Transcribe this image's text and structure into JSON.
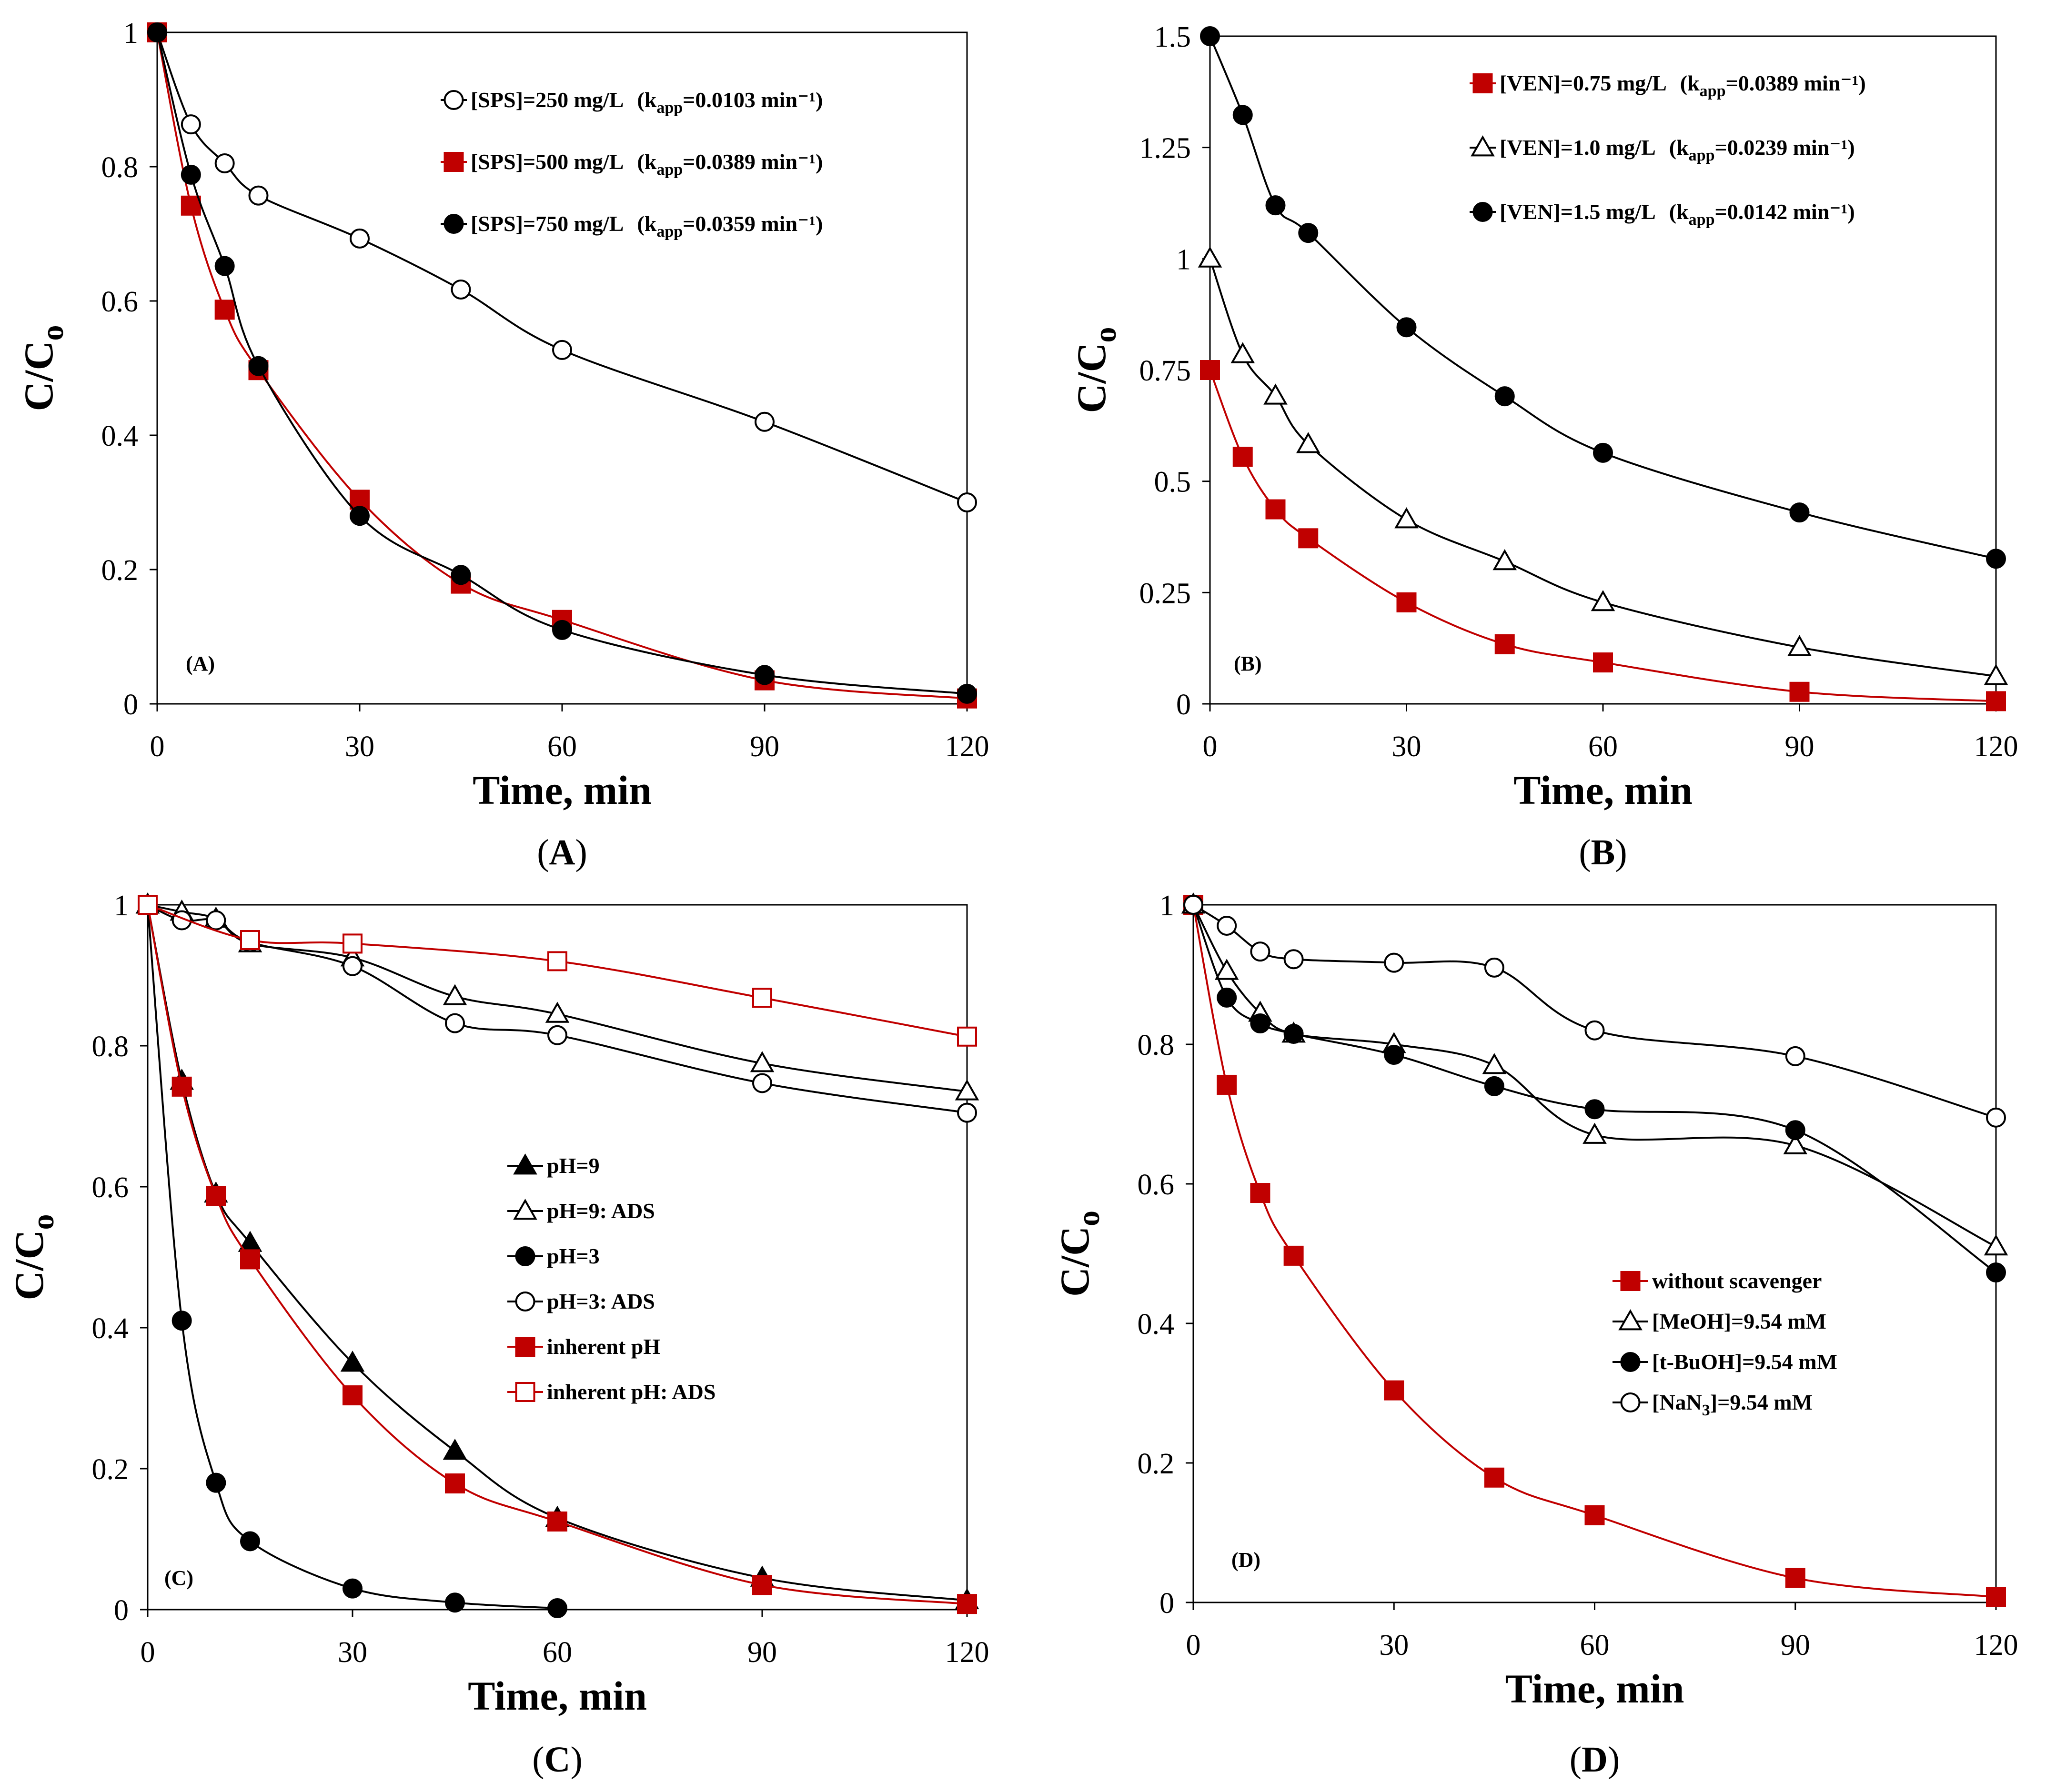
{
  "colors": {
    "red": "#c00000",
    "black": "#000000",
    "white": "#ffffff"
  },
  "chart_data": [
    {
      "id": "A",
      "type": "line",
      "caption_prefix": "(",
      "caption": "A",
      "caption_suffix": ")",
      "panel_label": "(A)",
      "xlabel": "Time, min",
      "ylabel_main": "C/C",
      "ylabel_sub": "o",
      "xlim": [
        0,
        120
      ],
      "ylim": [
        0,
        1
      ],
      "xticks": [
        0,
        30,
        60,
        90,
        120
      ],
      "yticks": [
        0,
        0.2,
        0.4,
        0.6,
        0.8,
        1
      ],
      "ytick_labels": [
        "0",
        "0.2",
        "0.4",
        "0.6",
        "0.8",
        "1"
      ],
      "legend_placement": "top-right",
      "series": [
        {
          "name": "[SPS]=250 mg/L",
          "k_prefix": "(k",
          "k_sub": "app",
          "k_value": "=0.0103 min⁻¹)",
          "marker": "circle",
          "fill": "white",
          "line": "black",
          "x": [
            0,
            5,
            10,
            15,
            30,
            45,
            60,
            90,
            120
          ],
          "y": [
            1,
            0.863,
            0.805,
            0.757,
            0.693,
            0.617,
            0.527,
            0.42,
            0.3
          ]
        },
        {
          "name": "[SPS]=500 mg/L",
          "k_prefix": "(k",
          "k_sub": "app",
          "k_value": "=0.0389 min⁻¹)",
          "marker": "square",
          "fill": "red",
          "line": "red",
          "x": [
            0,
            5,
            10,
            15,
            30,
            45,
            60,
            90,
            120
          ],
          "y": [
            1,
            0.742,
            0.587,
            0.497,
            0.304,
            0.179,
            0.125,
            0.035,
            0.008
          ]
        },
        {
          "name": "[SPS]=750 mg/L",
          "k_prefix": "(k",
          "k_sub": "app",
          "k_value": "=0.0359 min⁻¹)",
          "marker": "circle",
          "fill": "black",
          "line": "black",
          "x": [
            0,
            5,
            10,
            15,
            30,
            45,
            60,
            90,
            120
          ],
          "y": [
            1,
            0.788,
            0.652,
            0.503,
            0.28,
            0.192,
            0.11,
            0.043,
            0.015
          ]
        }
      ]
    },
    {
      "id": "B",
      "type": "line",
      "caption_prefix": "(",
      "caption": "B",
      "caption_suffix": ")",
      "panel_label": "(B)",
      "xlabel": "Time, min",
      "ylabel_main": "C/C",
      "ylabel_sub": "o",
      "xlim": [
        0,
        120
      ],
      "ylim": [
        0,
        1.5
      ],
      "xticks": [
        0,
        30,
        60,
        90,
        120
      ],
      "yticks": [
        0,
        0.25,
        0.5,
        0.75,
        1,
        1.25,
        1.5
      ],
      "ytick_labels": [
        "0",
        "0.25",
        "0.5",
        "0.75",
        "1",
        "1.25",
        "1.5"
      ],
      "legend_placement": "top-right",
      "series": [
        {
          "name": "[VEN]=0.75 mg/L",
          "k_prefix": "(k",
          "k_sub": "app",
          "k_value": "=0.0389 min⁻¹)",
          "marker": "square",
          "fill": "red",
          "line": "red",
          "x": [
            0,
            5,
            10,
            15,
            30,
            45,
            60,
            90,
            120
          ],
          "y": [
            0.75,
            0.555,
            0.437,
            0.372,
            0.228,
            0.134,
            0.093,
            0.027,
            0.006
          ]
        },
        {
          "name": "[VEN]=1.0 mg/L",
          "k_prefix": "(k",
          "k_sub": "app",
          "k_value": "=0.0239 min⁻¹)",
          "marker": "triangle",
          "fill": "white",
          "line": "black",
          "x": [
            0,
            5,
            10,
            15,
            30,
            45,
            60,
            90,
            120
          ],
          "y": [
            1,
            0.785,
            0.692,
            0.583,
            0.414,
            0.32,
            0.228,
            0.127,
            0.062
          ]
        },
        {
          "name": "[VEN]=1.5 mg/L",
          "k_prefix": "(k",
          "k_sub": "app",
          "k_value": "=0.0142 min⁻¹)",
          "marker": "circle",
          "fill": "black",
          "line": "black",
          "x": [
            0,
            5,
            10,
            15,
            30,
            45,
            60,
            90,
            120
          ],
          "y": [
            1.5,
            1.323,
            1.12,
            1.058,
            0.846,
            0.691,
            0.564,
            0.43,
            0.326
          ]
        }
      ]
    },
    {
      "id": "C",
      "type": "line",
      "caption_prefix": "(",
      "caption": "C",
      "caption_suffix": ")",
      "panel_label": "(C)",
      "xlabel": "Time, min",
      "ylabel_main": "C/C",
      "ylabel_sub": "o",
      "xlim": [
        0,
        120
      ],
      "ylim": [
        0,
        1
      ],
      "xticks": [
        0,
        30,
        60,
        90,
        120
      ],
      "yticks": [
        0,
        0.2,
        0.4,
        0.6,
        0.8,
        1
      ],
      "ytick_labels": [
        "0",
        "0.2",
        "0.4",
        "0.6",
        "0.8",
        "1"
      ],
      "legend_placement": "center-right",
      "series": [
        {
          "name": "pH=9",
          "marker": "triangle",
          "fill": "black",
          "line": "black",
          "x": [
            0,
            5,
            10,
            15,
            30,
            45,
            60,
            90,
            120
          ],
          "y": [
            1,
            0.75,
            0.59,
            0.52,
            0.35,
            0.225,
            0.13,
            0.045,
            0.013
          ]
        },
        {
          "name": "pH=9: ADS",
          "marker": "triangle",
          "fill": "white",
          "line": "black",
          "x": [
            0,
            5,
            10,
            15,
            30,
            45,
            60,
            90,
            120
          ],
          "y": [
            1,
            0.99,
            0.98,
            0.945,
            0.925,
            0.87,
            0.845,
            0.775,
            0.735
          ]
        },
        {
          "name": "pH=3",
          "marker": "circle",
          "fill": "black",
          "line": "black",
          "x": [
            0,
            5,
            10,
            15,
            30,
            45,
            60
          ],
          "y": [
            1,
            0.41,
            0.18,
            0.097,
            0.03,
            0.01,
            0.002
          ]
        },
        {
          "name": "pH=3: ADS",
          "marker": "circle",
          "fill": "white",
          "line": "black",
          "x": [
            0,
            5,
            10,
            15,
            30,
            45,
            60,
            90,
            120
          ],
          "y": [
            1,
            0.978,
            0.978,
            0.947,
            0.913,
            0.832,
            0.815,
            0.747,
            0.705
          ]
        },
        {
          "name": "inherent pH",
          "marker": "square",
          "fill": "red",
          "line": "red",
          "x": [
            0,
            5,
            10,
            15,
            30,
            45,
            60,
            90,
            120
          ],
          "y": [
            1,
            0.742,
            0.587,
            0.497,
            0.304,
            0.179,
            0.125,
            0.035,
            0.008
          ]
        },
        {
          "name": "inherent pH: ADS",
          "marker": "square",
          "fill": "white",
          "line": "red",
          "x": [
            0,
            15,
            30,
            60,
            90,
            120
          ],
          "y": [
            1,
            0.95,
            0.945,
            0.92,
            0.868,
            0.813
          ]
        }
      ]
    },
    {
      "id": "D",
      "type": "line",
      "caption_prefix": "(",
      "caption": "D",
      "caption_suffix": ")",
      "panel_label": "(D)",
      "xlabel": "Time, min",
      "ylabel_main": "C/C",
      "ylabel_sub": "o",
      "xlim": [
        0,
        120
      ],
      "ylim": [
        0,
        1
      ],
      "xticks": [
        0,
        30,
        60,
        90,
        120
      ],
      "yticks": [
        0,
        0.2,
        0.4,
        0.6,
        0.8,
        1
      ],
      "ytick_labels": [
        "0",
        "0.2",
        "0.4",
        "0.6",
        "0.8",
        "1"
      ],
      "legend_placement": "bottom-right",
      "series": [
        {
          "name": "without scavenger",
          "marker": "square",
          "fill": "red",
          "line": "red",
          "x": [
            0,
            5,
            10,
            15,
            30,
            45,
            60,
            90,
            120
          ],
          "y": [
            1,
            0.742,
            0.587,
            0.497,
            0.304,
            0.179,
            0.125,
            0.035,
            0.008
          ]
        },
        {
          "name": "[MeOH]=9.54 mM",
          "marker": "triangle",
          "fill": "white",
          "line": "black",
          "x": [
            0,
            5,
            10,
            15,
            30,
            45,
            60,
            90,
            120
          ],
          "y": [
            1,
            0.905,
            0.845,
            0.815,
            0.8,
            0.77,
            0.67,
            0.655,
            0.51
          ]
        },
        {
          "name": "[t-BuOH]=9.54 mM",
          "marker": "circle",
          "fill": "black",
          "line": "black",
          "x": [
            0,
            5,
            10,
            15,
            30,
            45,
            60,
            90,
            120
          ],
          "y": [
            1,
            0.867,
            0.83,
            0.815,
            0.785,
            0.74,
            0.707,
            0.677,
            0.473
          ]
        },
        {
          "name": "[NaN",
          "name_sub": "3",
          "name_tail": "]=9.54 mM",
          "marker": "circle",
          "fill": "white",
          "line": "black",
          "x": [
            0,
            5,
            10,
            15,
            30,
            45,
            60,
            90,
            120
          ],
          "y": [
            1,
            0.97,
            0.933,
            0.922,
            0.917,
            0.91,
            0.82,
            0.783,
            0.695
          ]
        }
      ]
    }
  ]
}
